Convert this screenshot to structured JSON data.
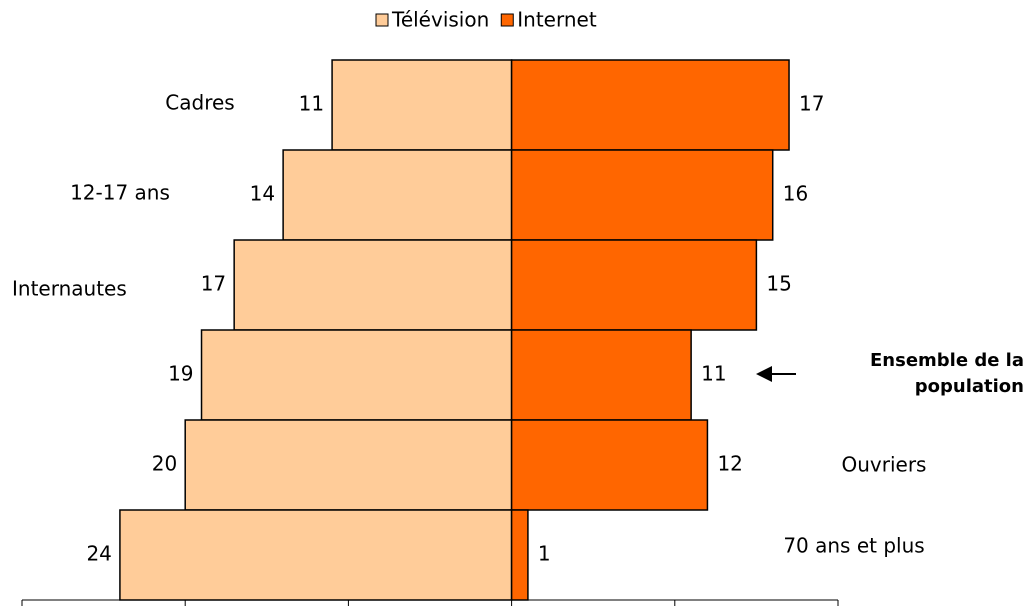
{
  "chart_data": {
    "type": "butterfly",
    "categories": [
      "Cadres",
      "12-17 ans",
      "Internautes",
      "Ensemble de la population",
      "Ouvriers",
      "70 ans et plus"
    ],
    "series": [
      {
        "name": "Télévision",
        "color": "#FFCC99",
        "values": [
          11,
          14,
          17,
          19,
          20,
          24
        ]
      },
      {
        "name": "Internet",
        "color": "#FF6600",
        "values": [
          17,
          16,
          15,
          11,
          12,
          1
        ]
      }
    ],
    "xlim": [
      -30,
      20
    ],
    "xticks": [
      -30,
      -20,
      -10,
      0,
      10,
      20
    ]
  }
}
